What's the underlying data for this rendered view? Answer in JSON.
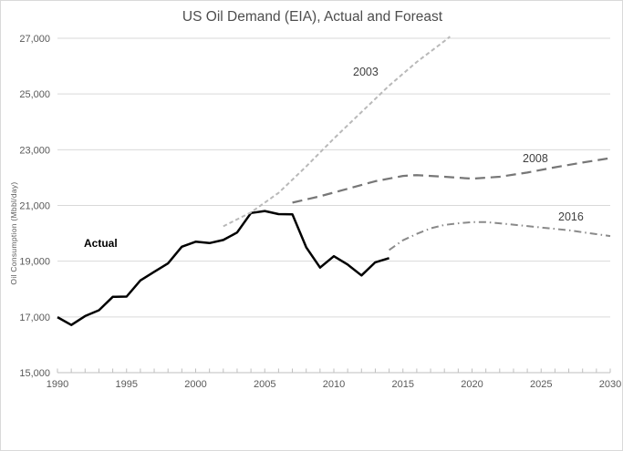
{
  "chart_data": {
    "type": "line",
    "title": "US Oil Demand (EIA), Actual and Foreast",
    "xlabel": "",
    "ylabel": "Oil Consumption (Mbbl/day)",
    "xlim": [
      1990,
      2030
    ],
    "ylim": [
      15000,
      27000
    ],
    "grid": "horizontal",
    "legend": "inline-labels",
    "colors": {
      "gridline": "#d9d9d9",
      "axis": "#bfbfbf",
      "tick_text": "#595959",
      "title_text": "#4d4d4d",
      "label_text": "#3f3f3f"
    },
    "x_ticks": [
      {
        "value": 1990,
        "label": "1990"
      },
      {
        "value": 1995,
        "label": "1995"
      },
      {
        "value": 2000,
        "label": "2000"
      },
      {
        "value": 2005,
        "label": "2005"
      },
      {
        "value": 2010,
        "label": "2010"
      },
      {
        "value": 2015,
        "label": "2015"
      },
      {
        "value": 2020,
        "label": "2020"
      },
      {
        "value": 2025,
        "label": "2025"
      },
      {
        "value": 2030,
        "label": "2030"
      }
    ],
    "y_ticks": [
      {
        "value": 15000,
        "label": "15,000"
      },
      {
        "value": 17000,
        "label": "17,000"
      },
      {
        "value": 19000,
        "label": "19,000"
      },
      {
        "value": 21000,
        "label": "21,000"
      },
      {
        "value": 23000,
        "label": "23,000"
      },
      {
        "value": 25000,
        "label": "25,000"
      },
      {
        "value": 27000,
        "label": "27,000"
      }
    ],
    "series": [
      {
        "name": "actual",
        "label": "Actual",
        "color": "#000000",
        "width": 2.5,
        "dash": "none",
        "x": [
          1990,
          1991,
          1992,
          1993,
          1994,
          1995,
          1996,
          1997,
          1998,
          1999,
          2000,
          2001,
          2002,
          2003,
          2004,
          2005,
          2006,
          2007,
          2008,
          2009,
          2010,
          2011,
          2012,
          2013,
          2014
        ],
        "values": [
          16990,
          16710,
          17030,
          17240,
          17720,
          17730,
          18310,
          18620,
          18920,
          19520,
          19700,
          19650,
          19760,
          20030,
          20730,
          20800,
          20690,
          20680,
          19500,
          18770,
          19180,
          18880,
          18490,
          18960,
          19110
        ]
      },
      {
        "name": "forecast-2003",
        "label": "2003",
        "color": "#b9b9b9",
        "width": 2,
        "dash": "4.5 3",
        "x": [
          2002,
          2004,
          2006,
          2008,
          2010,
          2012,
          2014,
          2016,
          2018,
          2018.4
        ],
        "values": [
          20250,
          20750,
          21450,
          22400,
          23400,
          24350,
          25300,
          26150,
          26900,
          27060
        ]
      },
      {
        "name": "forecast-2008",
        "label": "2008",
        "color": "#777777",
        "width": 2.25,
        "dash": "11 6",
        "x": [
          2007,
          2009,
          2011,
          2013,
          2015,
          2016,
          2018,
          2020,
          2022,
          2024,
          2026,
          2028,
          2030
        ],
        "values": [
          21100,
          21330,
          21600,
          21870,
          22060,
          22090,
          22030,
          21960,
          22030,
          22180,
          22370,
          22540,
          22700
        ]
      },
      {
        "name": "forecast-2016",
        "label": "2016",
        "color": "#8a8a8a",
        "width": 2,
        "dash": "8 4 1.5 4",
        "x": [
          2014,
          2015,
          2016,
          2017,
          2018,
          2019,
          2020,
          2021,
          2022,
          2023,
          2024,
          2025,
          2026,
          2027,
          2028,
          2029,
          2030
        ],
        "values": [
          19400,
          19750,
          19980,
          20180,
          20300,
          20360,
          20400,
          20400,
          20360,
          20310,
          20260,
          20210,
          20160,
          20110,
          20040,
          19970,
          19900
        ]
      }
    ]
  }
}
